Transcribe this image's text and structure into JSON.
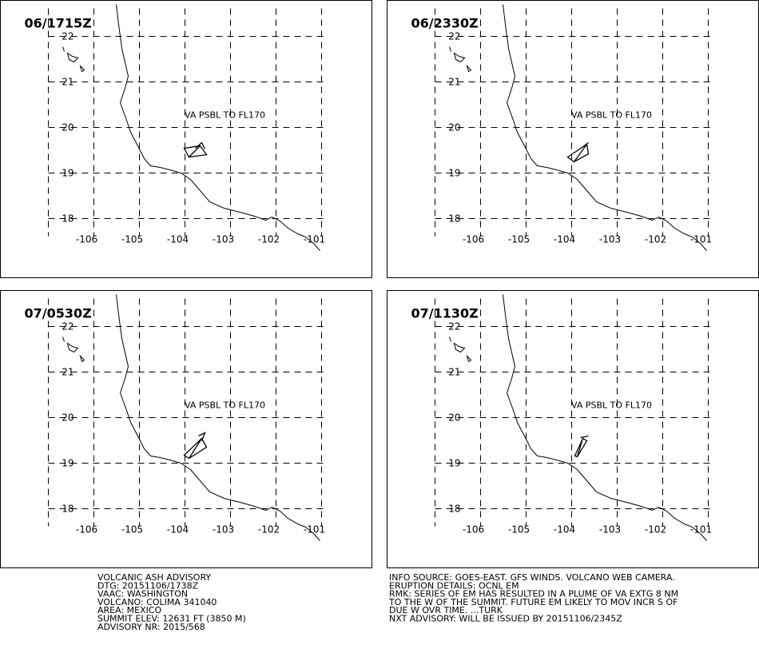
{
  "panels": [
    {
      "time": "06/1715Z",
      "label": "VA PSBL TO FL170"
    },
    {
      "time": "06/2330Z",
      "label": "VA PSBL TO FL170"
    },
    {
      "time": "07/0530Z",
      "label": "VA PSBL TO FL170"
    },
    {
      "time": "07/1130Z",
      "label": "VA PSBL TO FL170"
    }
  ],
  "grid": {
    "lats": [
      22,
      21,
      20,
      19,
      18
    ],
    "lons": [
      -106,
      -105,
      -104,
      -103,
      -102,
      -101
    ]
  },
  "advisory": {
    "left": [
      "VOLCANIC ASH ADVISORY",
      "DTG: 20151106/1738Z",
      "VAAC: WASHINGTON",
      "VOLCANO: COLIMA 341040",
      "AREA: MEXICO",
      "SUMMIT ELEV: 12631 FT (3850 M)",
      "ADVISORY NR: 2015/568"
    ],
    "right": [
      "INFO SOURCE: GOES-EAST. GFS WINDS. VOLCANO WEB CAMERA.",
      "ERUPTION DETAILS: OCNL EM",
      "RMK: SERIES OF EM HAS RESULTED IN A PLUME OF VA EXTG 8 NM",
      "TO THE W OF THE SUMMIT. FUTURE EM LIKELY TO MOV INCR S OF",
      "DUE W OVR TIME. ...TURK",
      "NXT ADVISORY: WILL BE ISSUED BY 20151106/2345Z"
    ]
  }
}
